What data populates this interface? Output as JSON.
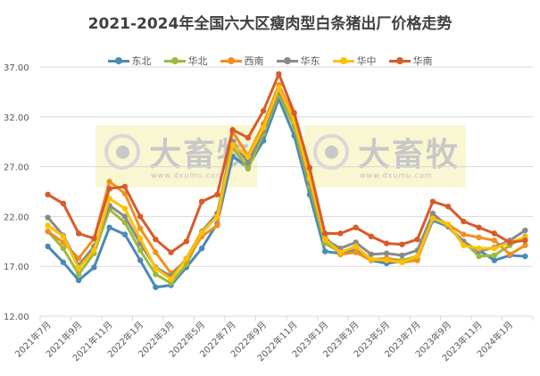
{
  "chart_data": {
    "type": "line",
    "title": "2021-2024年全国六大区瘦肉型白条猪出厂价格走势",
    "xlabel": "",
    "ylabel": "",
    "ylim": [
      12,
      37
    ],
    "yticks": [
      "12.00",
      "17.00",
      "22.00",
      "27.00",
      "32.00",
      "37.00"
    ],
    "grid": true,
    "legend_position": "top",
    "x": [
      "2021年7月",
      "2021年8月",
      "2021年9月",
      "2021年10月",
      "2021年11月",
      "2021年12月",
      "2022年1月",
      "2022年2月",
      "2022年3月",
      "2022年4月",
      "2022年5月",
      "2022年6月",
      "2022年7月",
      "2022年8月",
      "2022年9月",
      "2022年10月",
      "2022年11月",
      "2022年12月",
      "2023年1月",
      "2023年2月",
      "2023年3月",
      "2023年4月",
      "2023年5月",
      "2023年6月",
      "2023年7月",
      "2023年8月",
      "2023年9月",
      "2023年10月",
      "2023年11月",
      "2023年12月",
      "2024年1月",
      "2024年2月"
    ],
    "xtick_labels": [
      "2021年7月",
      "2021年9月",
      "2021年11月",
      "2022年1月",
      "2022年3月",
      "2022年5月",
      "2022年7月",
      "2022年9月",
      "2022年11月",
      "2023年1月",
      "2023年3月",
      "2023年5月",
      "2023年7月",
      "2023年9月",
      "2023年11月",
      "2024年1月"
    ],
    "series": [
      {
        "name": "东北",
        "color": "#4a8ab5",
        "values": [
          19.0,
          17.4,
          15.6,
          16.9,
          20.9,
          20.2,
          17.6,
          14.9,
          15.1,
          16.9,
          18.8,
          21.3,
          28.0,
          27.0,
          29.6,
          33.8,
          30.1,
          24.2,
          18.5,
          18.3,
          18.6,
          17.6,
          17.3,
          17.5,
          17.8,
          21.6,
          21.0,
          19.3,
          18.6,
          17.6,
          18.1,
          18.0
        ]
      },
      {
        "name": "华北",
        "color": "#9bbb3b",
        "values": [
          20.5,
          18.8,
          16.2,
          18.3,
          22.7,
          21.4,
          18.6,
          16.2,
          15.3,
          17.2,
          20.3,
          22.3,
          29.0,
          26.8,
          30.3,
          34.3,
          31.0,
          25.0,
          19.3,
          18.4,
          18.9,
          17.7,
          17.8,
          17.6,
          18.0,
          22.0,
          21.0,
          19.5,
          18.0,
          18.1,
          19.1,
          20.0
        ]
      },
      {
        "name": "西南",
        "color": "#f0901e",
        "values": [
          20.5,
          19.4,
          17.8,
          19.8,
          25.5,
          24.3,
          20.8,
          18.4,
          16.3,
          17.6,
          20.0,
          21.1,
          30.5,
          28.1,
          31.3,
          35.2,
          31.9,
          26.3,
          20.0,
          18.2,
          18.4,
          17.6,
          17.8,
          17.4,
          17.6,
          22.0,
          21.2,
          20.2,
          19.9,
          19.6,
          18.2,
          19.1
        ]
      },
      {
        "name": "华东",
        "color": "#8a8a8a",
        "values": [
          21.9,
          20.1,
          17.1,
          19.0,
          23.1,
          22.0,
          19.3,
          16.9,
          16.0,
          17.8,
          20.5,
          22.3,
          29.5,
          27.4,
          30.6,
          34.6,
          31.6,
          25.3,
          19.7,
          18.8,
          19.4,
          18.2,
          18.3,
          18.1,
          18.6,
          22.3,
          21.0,
          19.5,
          18.5,
          18.9,
          19.6,
          20.6
        ]
      },
      {
        "name": "华中",
        "color": "#ffc000",
        "values": [
          21.1,
          20.0,
          16.8,
          18.6,
          23.8,
          22.8,
          19.8,
          16.8,
          15.7,
          17.8,
          20.4,
          22.0,
          29.2,
          28.0,
          30.9,
          34.9,
          31.6,
          25.8,
          19.7,
          18.4,
          19.0,
          17.7,
          17.6,
          17.4,
          18.0,
          21.8,
          21.2,
          19.1,
          18.8,
          18.8,
          19.4,
          19.9
        ]
      },
      {
        "name": "华南",
        "color": "#d85a2a",
        "values": [
          24.2,
          23.3,
          20.3,
          19.8,
          24.8,
          25.0,
          22.0,
          19.7,
          18.4,
          19.5,
          23.5,
          24.2,
          30.7,
          29.9,
          32.6,
          36.3,
          32.4,
          26.9,
          20.3,
          20.3,
          20.9,
          20.0,
          19.3,
          19.2,
          19.7,
          23.5,
          23.0,
          21.5,
          20.9,
          20.3,
          19.4,
          19.6
        ]
      }
    ]
  },
  "watermark": {
    "text": "大畜牧",
    "url": "www.dxumu.com"
  }
}
